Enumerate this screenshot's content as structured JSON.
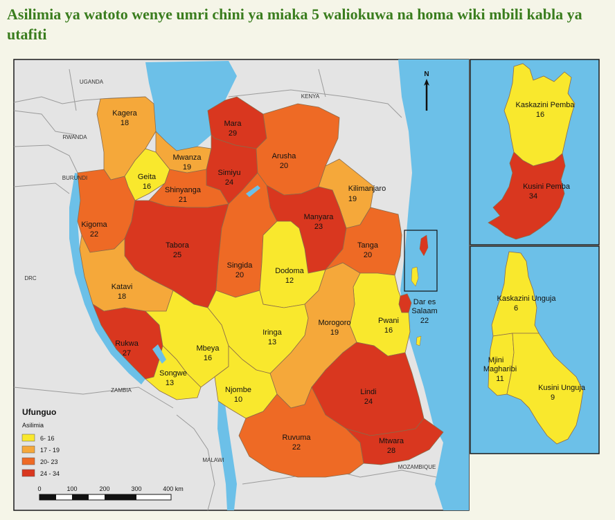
{
  "title": "Asilimia ya watoto wenye umri chini ya miaka 5 waliokuwa na homa wiki mbili kabla ya utafiti",
  "colors": {
    "band1": "#f9e82d",
    "band2": "#f5a83a",
    "band3": "#ee6a25",
    "band4": "#d9371f",
    "water": "#6cc0e8",
    "neighbor": "#e4e4e4",
    "frame": "#1a1a1a"
  },
  "countries": {
    "uganda": "UGANDA",
    "kenya": "KENYA",
    "rwanda": "RWANDA",
    "burundi": "BURUNDI",
    "drc": "DRC",
    "zambia": "ZAMBIA",
    "malawi": "MALAWI",
    "mozambique": "MOZAMBIQUE"
  },
  "north": "N",
  "regions": {
    "kagera": {
      "name": "Kagera",
      "value": "18"
    },
    "mara": {
      "name": "Mara",
      "value": "29"
    },
    "mwanza": {
      "name": "Mwanza",
      "value": "19"
    },
    "geita": {
      "name": "Geita",
      "value": "16"
    },
    "simiyu": {
      "name": "Simiyu",
      "value": "24"
    },
    "arusha": {
      "name": "Arusha",
      "value": "20"
    },
    "shinyanga": {
      "name": "Shinyanga",
      "value": "21"
    },
    "kilimanjaro": {
      "name": "Kilimanjaro",
      "value": "19"
    },
    "kigoma": {
      "name": "Kigoma",
      "value": "22"
    },
    "tabora": {
      "name": "Tabora",
      "value": "25"
    },
    "manyara": {
      "name": "Manyara",
      "value": "23"
    },
    "tanga": {
      "name": "Tanga",
      "value": "20"
    },
    "singida": {
      "name": "Singida",
      "value": "20"
    },
    "dodoma": {
      "name": "Dodoma",
      "value": "12"
    },
    "katavi": {
      "name": "Katavi",
      "value": "18"
    },
    "dar": {
      "name1": "Dar es",
      "name2": "Salaam",
      "value": "22"
    },
    "pwani": {
      "name": "Pwani",
      "value": "16"
    },
    "morogoro": {
      "name": "Morogoro",
      "value": "19"
    },
    "iringa": {
      "name": "Iringa",
      "value": "13"
    },
    "rukwa": {
      "name": "Rukwa",
      "value": "27"
    },
    "mbeya": {
      "name": "Mbeya",
      "value": "16"
    },
    "songwe": {
      "name": "Songwe",
      "value": "13"
    },
    "njombe": {
      "name": "Njombe",
      "value": "10"
    },
    "lindi": {
      "name": "Lindi",
      "value": "24"
    },
    "ruvuma": {
      "name": "Ruvuma",
      "value": "22"
    },
    "mtwara": {
      "name": "Mtwara",
      "value": "28"
    }
  },
  "insets": {
    "kaskazini_pemba": {
      "name": "Kaskazini Pemba",
      "value": "16"
    },
    "kusini_pemba": {
      "name": "Kusini Pemba",
      "value": "34"
    },
    "kaskazini_unguja": {
      "name": "Kaskazini Unguja",
      "value": "6"
    },
    "mjini_magharibi": {
      "name1": "Mjini",
      "name2": "Magharibi",
      "value": "11"
    },
    "kusini_unguja": {
      "name": "Kusini Unguja",
      "value": "9"
    }
  },
  "legend": {
    "title": "Ufunguo",
    "subtitle": "Asilimia",
    "items": [
      {
        "label": "6- 16",
        "color": "#f9e82d"
      },
      {
        "label": "17 - 19",
        "color": "#f5a83a"
      },
      {
        "label": "20- 23",
        "color": "#ee6a25"
      },
      {
        "label": "24 - 34",
        "color": "#d9371f"
      }
    ]
  },
  "scale": {
    "ticks": [
      "0",
      "100",
      "200",
      "300",
      "400 km"
    ]
  }
}
